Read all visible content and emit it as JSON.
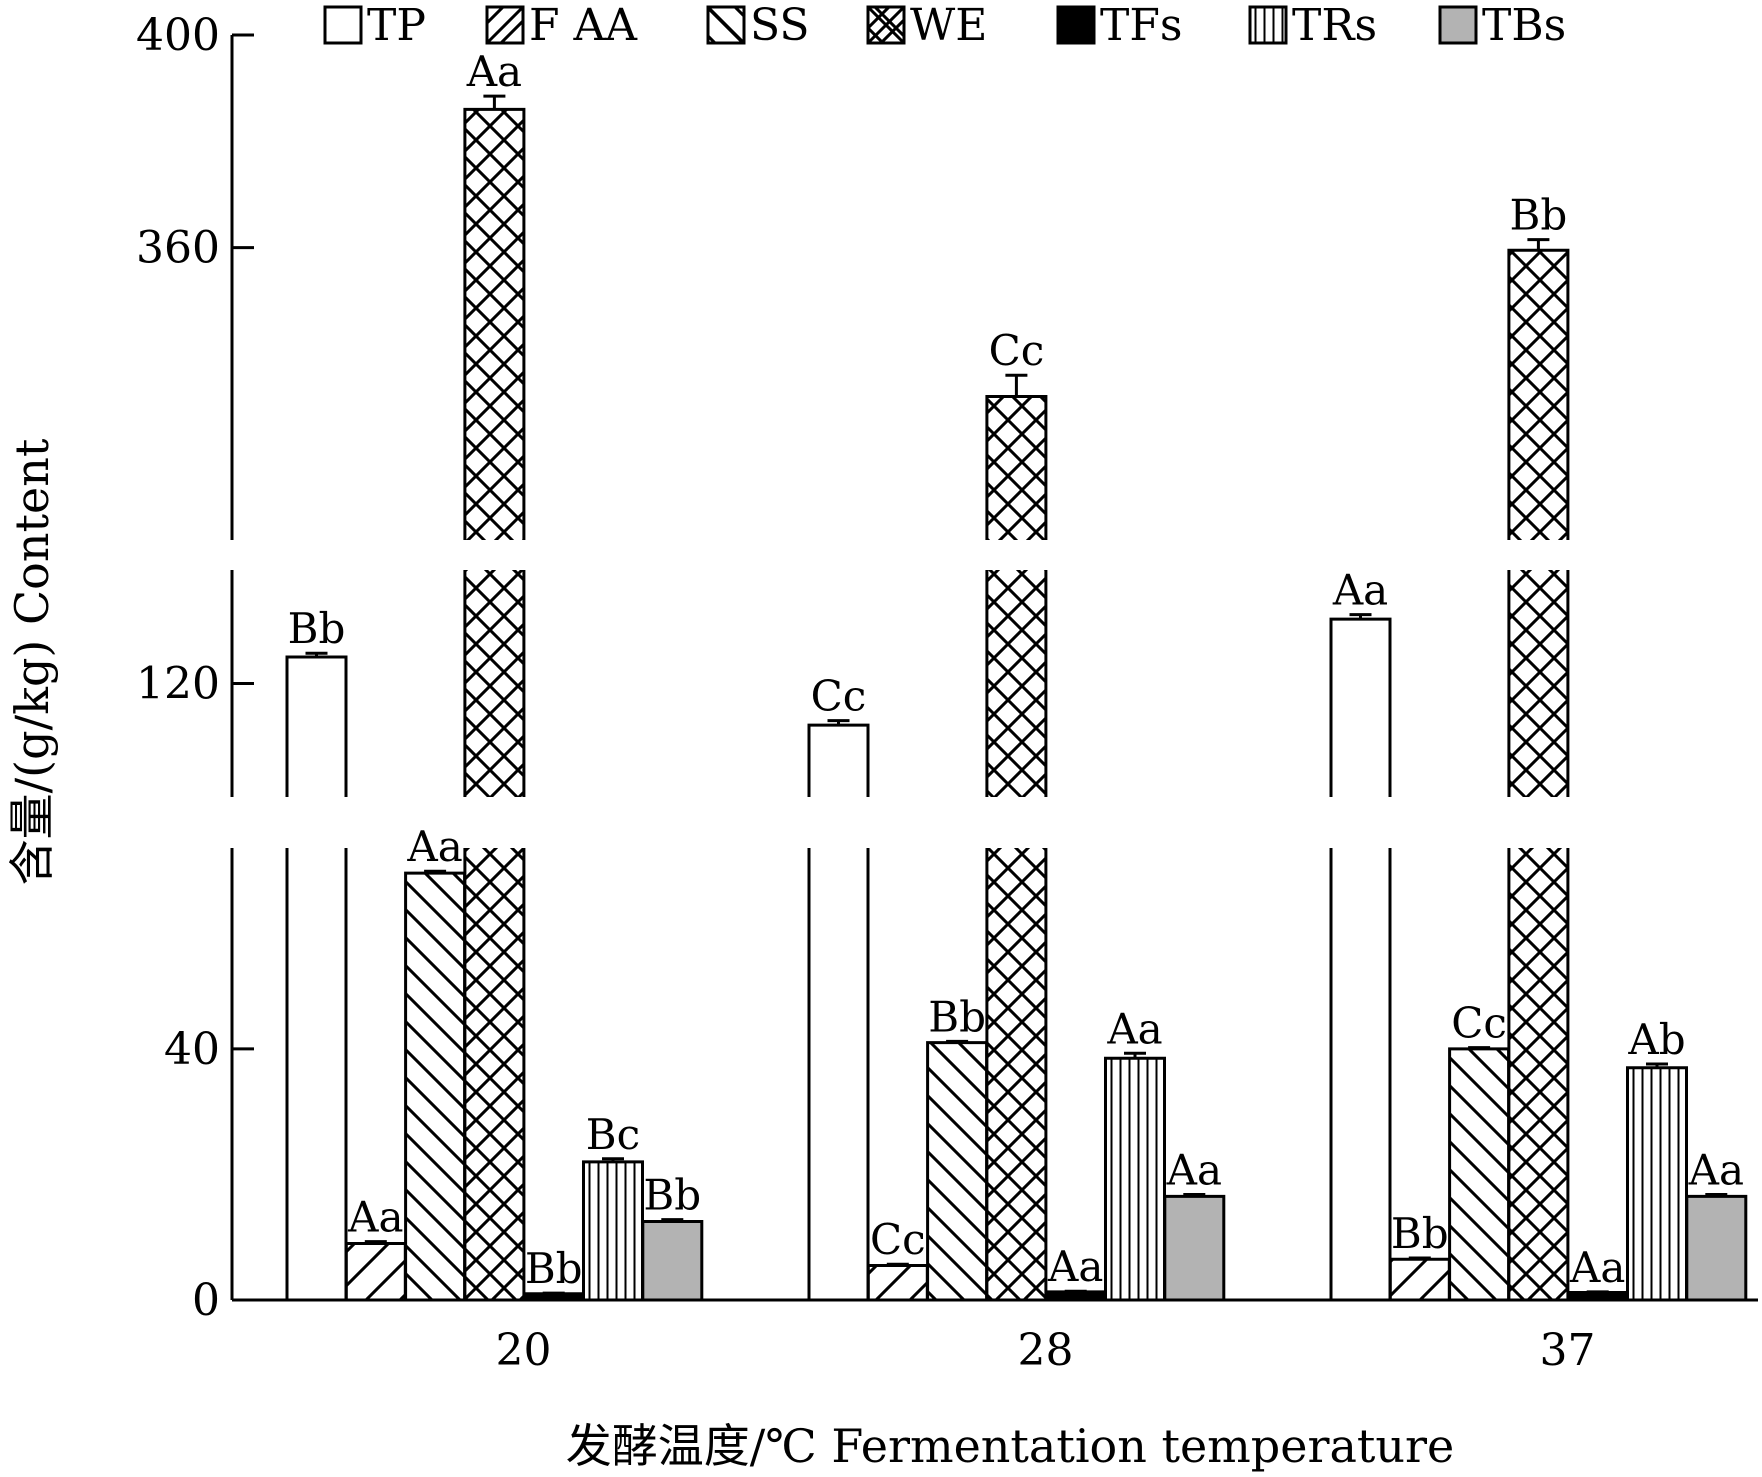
{
  "chart_data": {
    "type": "bar",
    "xlabel": "发酵温度/℃ Fermentation temperature",
    "ylabel": "含量/(g/kg) Content",
    "categories": [
      "20",
      "28",
      "37"
    ],
    "y_break_segments": [
      {
        "range": [
          0,
          72
        ],
        "ticks": [
          0,
          40
        ]
      },
      {
        "range": [
          105,
          135
        ],
        "ticks": [
          120
        ]
      },
      {
        "range": [
          305,
          400
        ],
        "ticks": [
          360,
          400
        ]
      }
    ],
    "series": [
      {
        "name": "TP",
        "pattern": "empty",
        "values": [
          123.5,
          114.5,
          128.5
        ],
        "errors": [
          0.5,
          0.6,
          0.6
        ],
        "labels": [
          "Bb",
          "Cc",
          "Aa"
        ]
      },
      {
        "name": "F AA",
        "pattern": "diagonal-up",
        "values": [
          9,
          5.5,
          6.5
        ],
        "errors": [
          0.3,
          0.2,
          0.2
        ],
        "labels": [
          "Aa",
          "Cc",
          "Bb"
        ]
      },
      {
        "name": "SS",
        "pattern": "diagonal-down",
        "values": [
          68,
          41,
          40
        ],
        "errors": [
          0.3,
          0.2,
          0.2
        ],
        "labels": [
          "Aa",
          "Bb",
          "Cc"
        ]
      },
      {
        "name": "WE",
        "pattern": "crosshatch",
        "values": [
          386,
          332,
          359.5
        ],
        "errors": [
          2.5,
          4,
          2
        ],
        "labels": [
          "Aa",
          "Cc",
          "Bb"
        ]
      },
      {
        "name": "TFs",
        "pattern": "solid-black",
        "values": [
          1.0,
          1.3,
          1.2
        ],
        "errors": [
          0.1,
          0.1,
          0.1
        ],
        "labels": [
          "Bb",
          "Aa",
          "Aa"
        ]
      },
      {
        "name": "TRs",
        "pattern": "vertical",
        "values": [
          22,
          38.5,
          37
        ],
        "errors": [
          0.5,
          0.8,
          0.6
        ],
        "labels": [
          "Bc",
          "Aa",
          "Ab"
        ]
      },
      {
        "name": "TBs",
        "pattern": "gray",
        "values": [
          12.5,
          16.5,
          16.5
        ],
        "errors": [
          0.3,
          0.3,
          0.3
        ],
        "labels": [
          "Bb",
          "Aa",
          "Aa"
        ]
      }
    ]
  }
}
